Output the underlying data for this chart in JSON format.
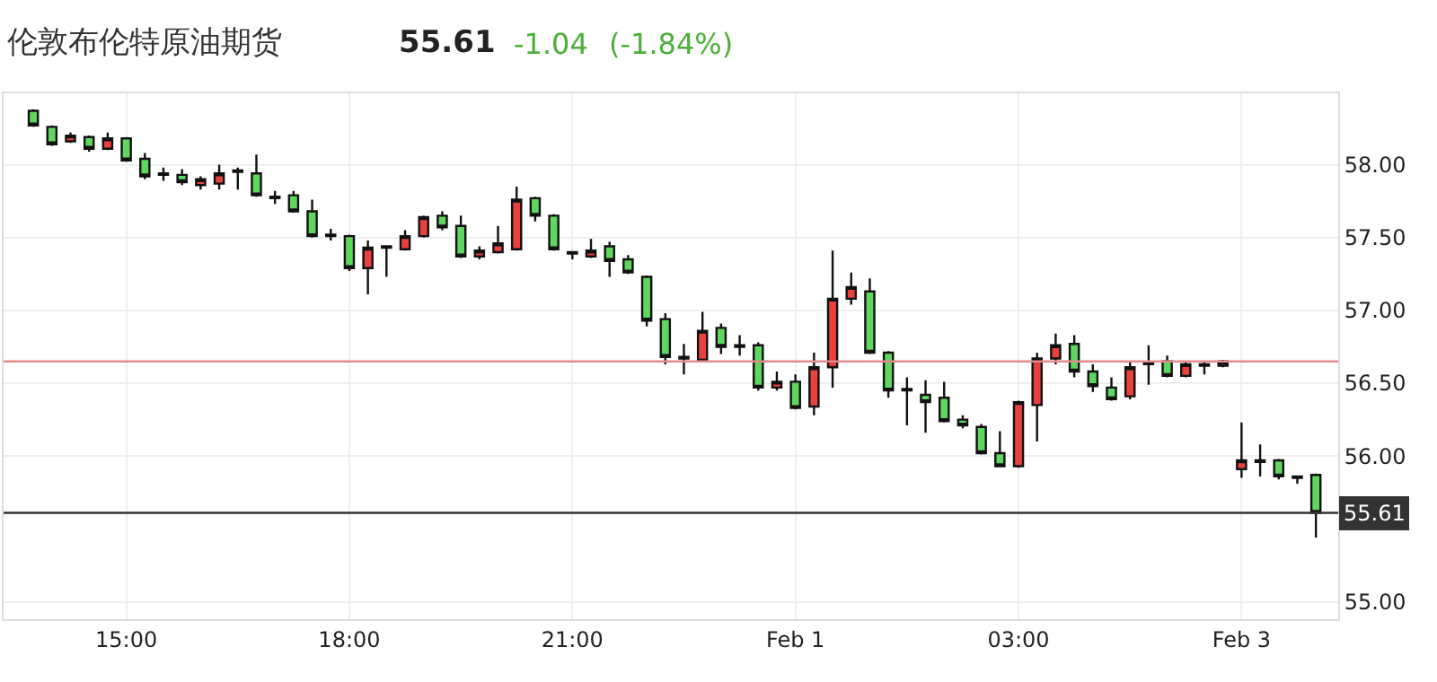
{
  "chart_data": {
    "type": "candlestick",
    "title": "伦敦布伦特原油期货",
    "annotations": [
      "55.61",
      "-1.04",
      "(-1.84%)"
    ],
    "categories": [
      null,
      null,
      null,
      null,
      null,
      "15:00",
      null,
      null,
      null,
      null,
      null,
      null,
      null,
      null,
      null,
      null,
      null,
      "18:00",
      null,
      null,
      null,
      null,
      null,
      null,
      null,
      null,
      null,
      null,
      null,
      "21:00",
      null,
      null,
      null,
      null,
      null,
      null,
      null,
      null,
      null,
      null,
      null,
      "Feb 1",
      null,
      null,
      null,
      null,
      null,
      null,
      null,
      null,
      null,
      null,
      null,
      "03:00",
      null,
      null,
      null,
      null,
      null,
      null,
      null,
      null,
      null,
      null,
      null,
      "Feb 3",
      null,
      null,
      null,
      null
    ],
    "ohlc": [
      [
        58.37,
        58.38,
        58.26,
        58.27
      ],
      [
        58.26,
        58.27,
        58.13,
        58.14
      ],
      [
        58.16,
        58.22,
        58.15,
        58.2
      ],
      [
        58.19,
        58.2,
        58.09,
        58.11
      ],
      [
        58.11,
        58.22,
        58.1,
        58.18
      ],
      [
        58.18,
        58.19,
        58.02,
        58.03
      ],
      [
        58.04,
        58.08,
        57.9,
        57.92
      ],
      [
        57.94,
        57.98,
        57.89,
        57.93
      ],
      [
        57.93,
        57.97,
        57.86,
        57.88
      ],
      [
        57.86,
        57.92,
        57.83,
        57.9
      ],
      [
        57.87,
        58.0,
        57.83,
        57.94
      ],
      [
        57.96,
        57.98,
        57.83,
        57.95
      ],
      [
        57.94,
        58.07,
        57.78,
        57.79
      ],
      [
        57.78,
        57.82,
        57.73,
        57.77
      ],
      [
        57.79,
        57.82,
        57.67,
        57.68
      ],
      [
        57.68,
        57.76,
        57.5,
        57.51
      ],
      [
        57.52,
        57.56,
        57.48,
        57.51
      ],
      [
        57.51,
        57.52,
        57.27,
        57.29
      ],
      [
        57.29,
        57.48,
        57.11,
        57.43
      ],
      [
        57.43,
        57.44,
        57.23,
        57.44
      ],
      [
        57.42,
        57.55,
        57.41,
        57.51
      ],
      [
        57.51,
        57.65,
        57.5,
        57.64
      ],
      [
        57.65,
        57.68,
        57.55,
        57.57
      ],
      [
        57.58,
        57.65,
        57.36,
        57.37
      ],
      [
        57.37,
        57.44,
        57.35,
        57.41
      ],
      [
        57.4,
        57.58,
        57.39,
        57.46
      ],
      [
        57.42,
        57.85,
        57.41,
        57.76
      ],
      [
        57.77,
        57.78,
        57.61,
        57.65
      ],
      [
        57.65,
        57.66,
        57.41,
        57.42
      ],
      [
        57.39,
        57.4,
        57.35,
        57.4
      ],
      [
        57.37,
        57.49,
        57.36,
        57.41
      ],
      [
        57.44,
        57.47,
        57.23,
        57.34
      ],
      [
        57.35,
        57.38,
        57.25,
        57.26
      ],
      [
        57.23,
        57.24,
        56.89,
        56.93
      ],
      [
        56.94,
        56.98,
        56.63,
        56.68
      ],
      [
        56.68,
        56.77,
        56.56,
        56.67
      ],
      [
        56.66,
        56.99,
        56.65,
        56.86
      ],
      [
        56.88,
        56.91,
        56.7,
        56.75
      ],
      [
        56.76,
        56.83,
        56.69,
        56.75
      ],
      [
        56.76,
        56.78,
        56.45,
        56.47
      ],
      [
        56.47,
        56.58,
        56.45,
        56.51
      ],
      [
        56.51,
        56.56,
        56.32,
        56.33
      ],
      [
        56.34,
        56.71,
        56.28,
        56.61
      ],
      [
        56.61,
        57.41,
        56.47,
        57.08
      ],
      [
        57.08,
        57.26,
        57.04,
        57.16
      ],
      [
        57.13,
        57.22,
        56.7,
        56.71
      ],
      [
        56.71,
        56.72,
        56.4,
        56.45
      ],
      [
        56.46,
        56.54,
        56.21,
        56.45
      ],
      [
        56.42,
        56.52,
        56.16,
        56.37
      ],
      [
        56.4,
        56.51,
        56.23,
        56.24
      ],
      [
        56.25,
        56.28,
        56.19,
        56.21
      ],
      [
        56.2,
        56.22,
        56.01,
        56.02
      ],
      [
        56.02,
        56.17,
        55.93,
        55.93
      ],
      [
        55.93,
        56.38,
        55.92,
        56.37
      ],
      [
        56.35,
        56.71,
        56.1,
        56.67
      ],
      [
        56.67,
        56.84,
        56.63,
        56.76
      ],
      [
        56.77,
        56.83,
        56.54,
        56.58
      ],
      [
        56.58,
        56.63,
        56.44,
        56.48
      ],
      [
        56.47,
        56.54,
        56.38,
        56.39
      ],
      [
        56.41,
        56.65,
        56.39,
        56.61
      ],
      [
        56.64,
        56.76,
        56.49,
        56.63
      ],
      [
        56.65,
        56.69,
        56.54,
        56.55
      ],
      [
        56.55,
        56.65,
        56.54,
        56.63
      ],
      [
        56.63,
        56.65,
        56.56,
        56.62
      ],
      [
        56.62,
        56.66,
        56.61,
        56.65
      ],
      [
        55.91,
        56.23,
        55.85,
        55.97
      ],
      [
        55.97,
        56.08,
        55.86,
        55.96
      ],
      [
        55.97,
        55.98,
        55.84,
        55.86
      ],
      [
        55.86,
        55.86,
        55.81,
        55.85
      ],
      [
        55.87,
        55.88,
        55.44,
        55.61
      ]
    ],
    "colors": [
      "#5fd660",
      "#5fd660",
      "#e8413e",
      "#5fd660",
      "#e8413e",
      "#5fd660",
      "#5fd660",
      "#111111",
      "#5fd660",
      "#e8413e",
      "#e8413e",
      "#111111",
      "#5fd660",
      "#111111",
      "#5fd660",
      "#5fd660",
      "#111111",
      "#5fd660",
      "#e8413e",
      "#111111",
      "#e8413e",
      "#e8413e",
      "#5fd660",
      "#5fd660",
      "#e8413e",
      "#e8413e",
      "#e8413e",
      "#5fd660",
      "#5fd660",
      "#111111",
      "#e8413e",
      "#5fd660",
      "#5fd660",
      "#5fd660",
      "#5fd660",
      "#111111",
      "#e8413e",
      "#5fd660",
      "#111111",
      "#5fd660",
      "#e8413e",
      "#5fd660",
      "#e8413e",
      "#e8413e",
      "#e8413e",
      "#5fd660",
      "#5fd660",
      "#111111",
      "#5fd660",
      "#5fd660",
      "#5fd660",
      "#5fd660",
      "#5fd660",
      "#e8413e",
      "#e8413e",
      "#e8413e",
      "#5fd660",
      "#5fd660",
      "#5fd660",
      "#e8413e",
      "#111111",
      "#5fd660",
      "#e8413e",
      "#111111",
      "#e8413e",
      "#e8413e",
      "#111111",
      "#5fd660",
      "#111111",
      "#5fd660"
    ],
    "ylim": [
      54.88,
      58.49
    ],
    "yticks": [
      {
        "value": 55,
        "label": "55.00"
      },
      {
        "value": 56,
        "label": "56.00"
      },
      {
        "value": 56.5,
        "label": "56.50"
      },
      {
        "value": 57,
        "label": "57.00"
      },
      {
        "value": 57.5,
        "label": "57.50"
      },
      {
        "value": 58,
        "label": "58.00"
      }
    ],
    "ref_lines": [
      {
        "axis": "y",
        "value": 56.65,
        "color": "#e38b8b"
      },
      {
        "axis": "y",
        "value": 55.61,
        "label": "55.61",
        "color": "#333333"
      }
    ],
    "grid": true
  }
}
